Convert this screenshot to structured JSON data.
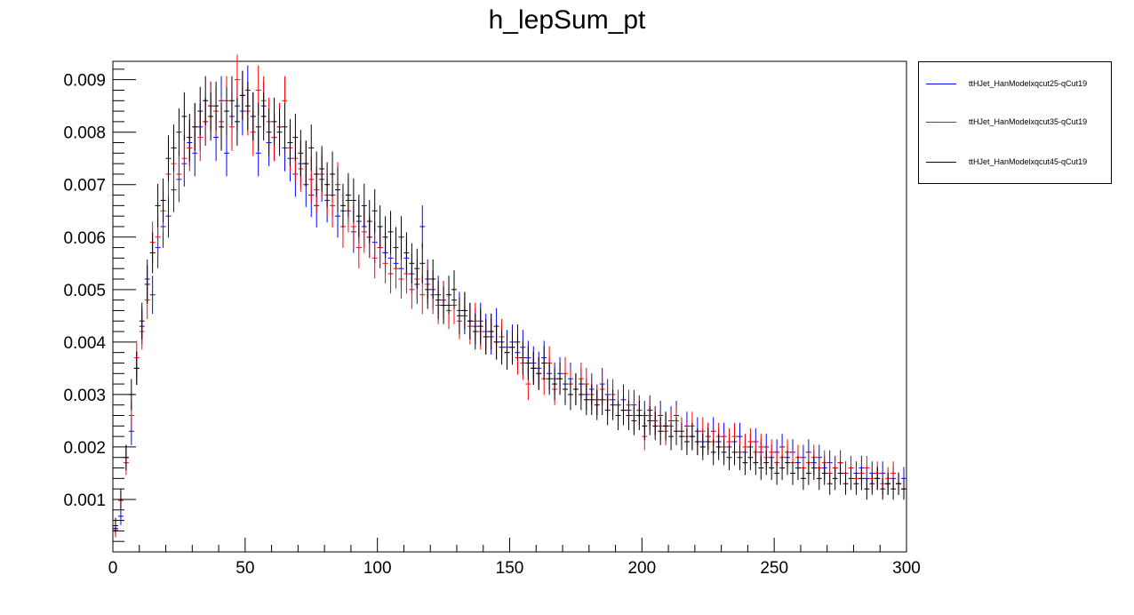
{
  "chart_data": {
    "type": "scatter",
    "title": "h_lepSum_pt",
    "xlabel": "",
    "ylabel": "",
    "xlim": [
      0,
      300
    ],
    "ylim": [
      0,
      0.00935
    ],
    "x_ticks": [
      "0",
      "50",
      "100",
      "150",
      "200",
      "250",
      "300"
    ],
    "y_ticks": [
      "0.001",
      "0.002",
      "0.003",
      "0.004",
      "0.005",
      "0.006",
      "0.007",
      "0.008",
      "0.009"
    ],
    "grid": false,
    "legend_position": "top-right, outside plot area",
    "bin_width": 2,
    "error_bars": true,
    "series": [
      {
        "name": "ttHJet_HanModelxqcut25-qCut19",
        "color": "#0000ff",
        "x": [
          1,
          3,
          5,
          7,
          9,
          11,
          13,
          15,
          17,
          19,
          21,
          23,
          25,
          27,
          29,
          31,
          33,
          35,
          37,
          39,
          41,
          43,
          45,
          47,
          49,
          51,
          53,
          55,
          57,
          59,
          61,
          63,
          65,
          67,
          69,
          71,
          73,
          75,
          77,
          79,
          81,
          83,
          85,
          87,
          89,
          91,
          93,
          95,
          97,
          99,
          101,
          103,
          105,
          107,
          109,
          111,
          113,
          115,
          117,
          119,
          121,
          123,
          125,
          127,
          129,
          131,
          133,
          135,
          137,
          139,
          141,
          143,
          145,
          147,
          149,
          151,
          153,
          155,
          157,
          159,
          161,
          163,
          165,
          167,
          169,
          171,
          173,
          175,
          177,
          179,
          181,
          183,
          185,
          187,
          189,
          191,
          193,
          195,
          197,
          199,
          201,
          203,
          205,
          207,
          209,
          211,
          213,
          215,
          217,
          219,
          221,
          223,
          225,
          227,
          229,
          231,
          233,
          235,
          237,
          239,
          241,
          243,
          245,
          247,
          249,
          251,
          253,
          255,
          257,
          259,
          261,
          263,
          265,
          267,
          269,
          271,
          273,
          275,
          277,
          279,
          281,
          283,
          285,
          287,
          289,
          291,
          293,
          295,
          297,
          299
        ],
        "y": [
          0.00045,
          0.00068,
          0.0018,
          0.0023,
          0.0035,
          0.0043,
          0.0052,
          0.0049,
          0.0058,
          0.0062,
          0.0064,
          0.0069,
          0.0071,
          0.0074,
          0.0078,
          0.0076,
          0.0081,
          0.0082,
          0.0085,
          0.0079,
          0.0086,
          0.0076,
          0.0083,
          0.0085,
          0.0084,
          0.0088,
          0.0083,
          0.0076,
          0.0085,
          0.0078,
          0.0079,
          0.0081,
          0.0077,
          0.0075,
          0.0072,
          0.0074,
          0.007,
          0.0068,
          0.0066,
          0.0071,
          0.0067,
          0.0068,
          0.0064,
          0.0065,
          0.0067,
          0.0061,
          0.0063,
          0.0062,
          0.006,
          0.0059,
          0.0058,
          0.0057,
          0.0056,
          0.0055,
          0.0054,
          0.0056,
          0.0053,
          0.0051,
          0.0062,
          0.0052,
          0.005,
          0.0049,
          0.0048,
          0.0047,
          0.0048,
          0.0046,
          0.0045,
          0.0044,
          0.0043,
          0.0044,
          0.0042,
          0.0041,
          0.0043,
          0.004,
          0.0039,
          0.004,
          0.0038,
          0.0039,
          0.0037,
          0.0036,
          0.0035,
          0.0037,
          0.0034,
          0.0033,
          0.0034,
          0.0032,
          0.0033,
          0.0031,
          0.0032,
          0.003,
          0.0031,
          0.0029,
          0.0032,
          0.003,
          0.0029,
          0.0028,
          0.0029,
          0.0027,
          0.0028,
          0.0027,
          0.0026,
          0.0027,
          0.0025,
          0.0026,
          0.0024,
          0.0025,
          0.0026,
          0.0023,
          0.0024,
          0.0022,
          0.0023,
          0.0021,
          0.0022,
          0.0023,
          0.0021,
          0.0022,
          0.002,
          0.0021,
          0.0022,
          0.0019,
          0.002,
          0.0021,
          0.0019,
          0.002,
          0.0018,
          0.0019,
          0.002,
          0.0018,
          0.0019,
          0.0017,
          0.0018,
          0.0019,
          0.0017,
          0.0018,
          0.0016,
          0.0017,
          0.0016,
          0.0017,
          0.0015,
          0.0016,
          0.0015,
          0.0016,
          0.0014,
          0.0015,
          0.0014,
          0.0015,
          0.0013,
          0.0014,
          0.0013,
          0.0014
        ]
      },
      {
        "name": "ttHJet_HanModelxqcut35-qCut19",
        "color": "#ff0000",
        "x": [
          1,
          3,
          5,
          7,
          9,
          11,
          13,
          15,
          17,
          19,
          21,
          23,
          25,
          27,
          29,
          31,
          33,
          35,
          37,
          39,
          41,
          43,
          45,
          47,
          49,
          51,
          53,
          55,
          57,
          59,
          61,
          63,
          65,
          67,
          69,
          71,
          73,
          75,
          77,
          79,
          81,
          83,
          85,
          87,
          89,
          91,
          93,
          95,
          97,
          99,
          101,
          103,
          105,
          107,
          109,
          111,
          113,
          115,
          117,
          119,
          121,
          123,
          125,
          127,
          129,
          131,
          133,
          135,
          137,
          139,
          141,
          143,
          145,
          147,
          149,
          151,
          153,
          155,
          157,
          159,
          161,
          163,
          165,
          167,
          169,
          171,
          173,
          175,
          177,
          179,
          181,
          183,
          185,
          187,
          189,
          191,
          193,
          195,
          197,
          199,
          201,
          203,
          205,
          207,
          209,
          211,
          213,
          215,
          217,
          219,
          221,
          223,
          225,
          227,
          229,
          231,
          233,
          235,
          237,
          239,
          241,
          243,
          245,
          247,
          249,
          251,
          253,
          255,
          257,
          259,
          261,
          263,
          265,
          267,
          269,
          271,
          273,
          275,
          277,
          279,
          281,
          283,
          285,
          287,
          289,
          291,
          293,
          295,
          297,
          299
        ],
        "y": [
          0.00042,
          0.00098,
          0.0017,
          0.0026,
          0.0037,
          0.0042,
          0.0048,
          0.0059,
          0.006,
          0.0065,
          0.0072,
          0.0074,
          0.0072,
          0.0075,
          0.0077,
          0.0081,
          0.0079,
          0.0082,
          0.0085,
          0.0084,
          0.0082,
          0.0086,
          0.0081,
          0.009,
          0.0087,
          0.0084,
          0.008,
          0.0088,
          0.0086,
          0.0082,
          0.0079,
          0.0081,
          0.0086,
          0.0077,
          0.0075,
          0.0073,
          0.0074,
          0.0071,
          0.0069,
          0.0072,
          0.0068,
          0.0066,
          0.007,
          0.0062,
          0.0065,
          0.0062,
          0.0058,
          0.0061,
          0.006,
          0.0056,
          0.0058,
          0.0055,
          0.0053,
          0.0054,
          0.0052,
          0.0053,
          0.005,
          0.0052,
          0.0049,
          0.0051,
          0.0049,
          0.0047,
          0.0048,
          0.0046,
          0.0047,
          0.0044,
          0.0046,
          0.0043,
          0.0044,
          0.0042,
          0.0041,
          0.0042,
          0.004,
          0.0041,
          0.0038,
          0.0039,
          0.0037,
          0.0036,
          0.0032,
          0.0035,
          0.0034,
          0.0033,
          0.0036,
          0.0031,
          0.0033,
          0.0034,
          0.0032,
          0.0031,
          0.0033,
          0.0032,
          0.003,
          0.0029,
          0.0031,
          0.0029,
          0.003,
          0.0028,
          0.0027,
          0.0028,
          0.0026,
          0.0027,
          0.0022,
          0.0026,
          0.0025,
          0.0024,
          0.0023,
          0.0024,
          0.0025,
          0.0023,
          0.0022,
          0.0024,
          0.0021,
          0.0023,
          0.0022,
          0.0021,
          0.0022,
          0.002,
          0.0021,
          0.0022,
          0.0019,
          0.002,
          0.0021,
          0.0019,
          0.002,
          0.0018,
          0.0019,
          0.0017,
          0.0018,
          0.0019,
          0.0017,
          0.0018,
          0.0016,
          0.0017,
          0.0018,
          0.0016,
          0.0017,
          0.0015,
          0.0016,
          0.0017,
          0.0015,
          0.0016,
          0.0014,
          0.0015,
          0.0016,
          0.0014,
          0.0015,
          0.0013,
          0.0014,
          0.0015,
          0.0013,
          0.0012
        ]
      },
      {
        "name": "ttHJet_HanModelxqcut45-qCut19",
        "color": "#000000",
        "x": [
          1,
          3,
          5,
          7,
          9,
          11,
          13,
          15,
          17,
          19,
          21,
          23,
          25,
          27,
          29,
          31,
          33,
          35,
          37,
          39,
          41,
          43,
          45,
          47,
          49,
          51,
          53,
          55,
          57,
          59,
          61,
          63,
          65,
          67,
          69,
          71,
          73,
          75,
          77,
          79,
          81,
          83,
          85,
          87,
          89,
          91,
          93,
          95,
          97,
          99,
          101,
          103,
          105,
          107,
          109,
          111,
          113,
          115,
          117,
          119,
          121,
          123,
          125,
          127,
          129,
          131,
          133,
          135,
          137,
          139,
          141,
          143,
          145,
          147,
          149,
          151,
          153,
          155,
          157,
          159,
          161,
          163,
          165,
          167,
          169,
          171,
          173,
          175,
          177,
          179,
          181,
          183,
          185,
          187,
          189,
          191,
          193,
          195,
          197,
          199,
          201,
          203,
          205,
          207,
          209,
          211,
          213,
          215,
          217,
          219,
          221,
          223,
          225,
          227,
          229,
          231,
          233,
          235,
          237,
          239,
          241,
          243,
          245,
          247,
          249,
          251,
          253,
          255,
          257,
          259,
          261,
          263,
          265,
          267,
          269,
          271,
          273,
          275,
          277,
          279,
          281,
          283,
          285,
          287,
          289,
          291,
          293,
          295,
          297,
          299
        ],
        "y": [
          0.0005,
          0.001,
          0.0018,
          0.003,
          0.0035,
          0.0044,
          0.0051,
          0.0057,
          0.0066,
          0.0067,
          0.0075,
          0.0077,
          0.008,
          0.0083,
          0.0079,
          0.0081,
          0.0084,
          0.0086,
          0.0083,
          0.0085,
          0.0081,
          0.0084,
          0.0086,
          0.0082,
          0.0087,
          0.0085,
          0.0083,
          0.0081,
          0.0083,
          0.008,
          0.0082,
          0.008,
          0.0081,
          0.0078,
          0.0079,
          0.0076,
          0.0074,
          0.0077,
          0.0072,
          0.0073,
          0.007,
          0.0072,
          0.0069,
          0.0066,
          0.0068,
          0.0067,
          0.0064,
          0.0066,
          0.0063,
          0.0065,
          0.0062,
          0.006,
          0.0061,
          0.0058,
          0.006,
          0.0057,
          0.0055,
          0.0054,
          0.0055,
          0.005,
          0.0052,
          0.0048,
          0.0047,
          0.0049,
          0.005,
          0.0045,
          0.0046,
          0.0044,
          0.0042,
          0.0043,
          0.0041,
          0.0042,
          0.004,
          0.0039,
          0.0038,
          0.0039,
          0.004,
          0.0037,
          0.0036,
          0.0035,
          0.0034,
          0.0036,
          0.0033,
          0.0032,
          0.0033,
          0.0031,
          0.003,
          0.0031,
          0.003,
          0.0029,
          0.0029,
          0.0028,
          0.0029,
          0.0027,
          0.0028,
          0.0026,
          0.0027,
          0.0026,
          0.0025,
          0.0026,
          0.0024,
          0.0025,
          0.0024,
          0.0023,
          0.0024,
          0.0022,
          0.0023,
          0.0022,
          0.0021,
          0.0022,
          0.0021,
          0.002,
          0.0021,
          0.0019,
          0.002,
          0.0019,
          0.0018,
          0.0019,
          0.0018,
          0.0017,
          0.0018,
          0.0017,
          0.0016,
          0.0017,
          0.0016,
          0.0015,
          0.0016,
          0.0017,
          0.0015,
          0.0016,
          0.0014,
          0.0015,
          0.0016,
          0.0014,
          0.0015,
          0.0013,
          0.0014,
          0.0015,
          0.0013,
          0.0014,
          0.0013,
          0.0014,
          0.0012,
          0.0013,
          0.0014,
          0.0012,
          0.0013,
          0.0012,
          0.0013,
          0.0012
        ]
      }
    ]
  }
}
